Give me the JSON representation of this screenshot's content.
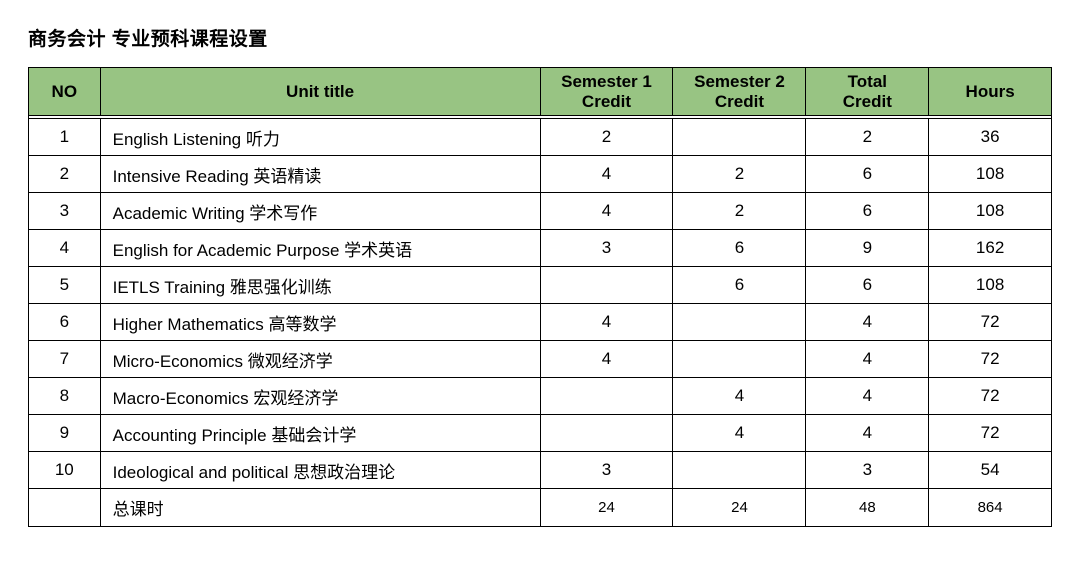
{
  "colors": {
    "header_bg": "#98c483",
    "border": "#000000",
    "text": "#000000",
    "bg": "#ffffff"
  },
  "title": "商务会计 专业预科课程设置",
  "table": {
    "col_widths_pct": [
      7,
      43,
      13,
      13,
      12,
      12
    ],
    "columns": [
      "NO",
      "Unit title",
      "Semester 1\nCredit",
      "Semester 2\nCredit",
      "Total\nCredit",
      "Hours"
    ],
    "rows": [
      {
        "no": "1",
        "title": " English Listening 听力",
        "s1": "2",
        "s2": "",
        "tot": "2",
        "hrs": "36"
      },
      {
        "no": "2",
        "title": " Intensive  Reading 英语精读",
        "s1": "4",
        "s2": "2",
        "tot": "6",
        "hrs": "108"
      },
      {
        "no": "3",
        "title": " Academic Writing 学术写作",
        "s1": "4",
        "s2": "2",
        "tot": "6",
        "hrs": "108"
      },
      {
        "no": "4",
        "title": "English for Academic Purpose 学术英语",
        "s1": "3",
        "s2": "6",
        "tot": "9",
        "hrs": "162"
      },
      {
        "no": "5",
        "title": "IETLS Training 雅思强化训练",
        "s1": "",
        "s2": "6",
        "tot": "6",
        "hrs": "108"
      },
      {
        "no": "6",
        "title": "Higher Mathematics 高等数学",
        "s1": "4",
        "s2": "",
        "tot": "4",
        "hrs": "72"
      },
      {
        "no": "7",
        "title": "Micro-Economics 微观经济学",
        "s1": "4",
        "s2": "",
        "tot": "4",
        "hrs": "72"
      },
      {
        "no": "8",
        "title": "Macro-Economics 宏观经济学",
        "s1": "",
        "s2": "4",
        "tot": "4",
        "hrs": "72"
      },
      {
        "no": "9",
        "title": " Accounting Principle 基础会计学",
        "s1": "",
        "s2": "4",
        "tot": "4",
        "hrs": "72"
      },
      {
        "no": "10",
        "title": " Ideological and political 思想政治理论",
        "s1": "3",
        "s2": "",
        "tot": "3",
        "hrs": "54"
      }
    ],
    "summary": {
      "no": "",
      "title": "总课时",
      "s1": "24",
      "s2": "24",
      "tot": "48",
      "hrs": "864"
    }
  }
}
